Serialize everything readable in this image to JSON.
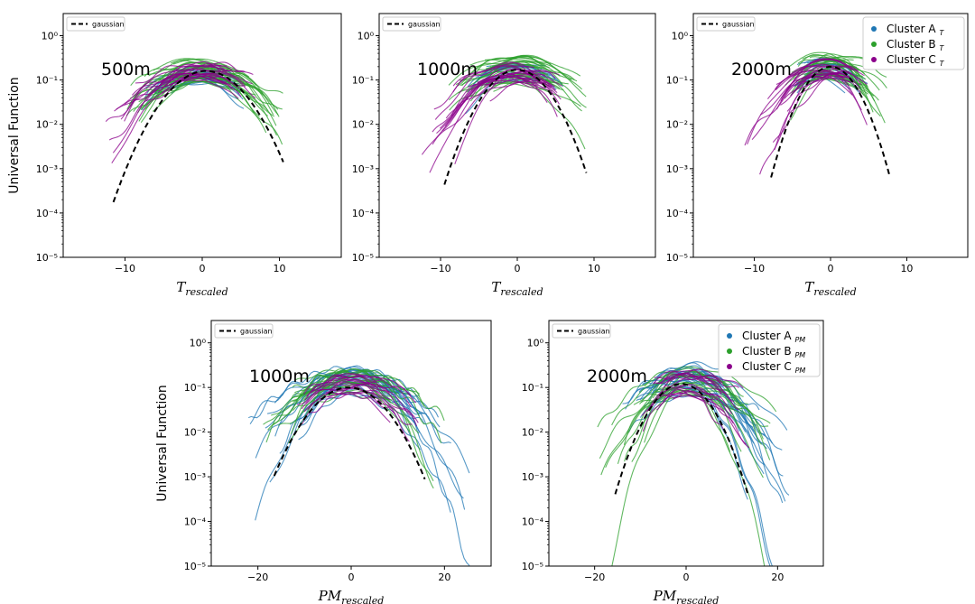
{
  "chart_data": [
    {
      "id": "top-500m",
      "type": "line",
      "annotation": "500m",
      "ylabel": "Universal Function",
      "xlabel": {
        "main": "T",
        "sub": "rescaled"
      },
      "xlim": [
        -18,
        18
      ],
      "ylim_log10": [
        -5,
        0.5
      ],
      "xticks": [
        {
          "v": -10,
          "label": "−10"
        },
        {
          "v": 0,
          "label": "0"
        },
        {
          "v": 10,
          "label": "10"
        }
      ],
      "yticks": [
        {
          "e": 0,
          "label": "10⁰"
        },
        {
          "e": -1,
          "label": "10⁻¹"
        },
        {
          "e": -2,
          "label": "10⁻²"
        },
        {
          "e": -3,
          "label": "10⁻³"
        },
        {
          "e": -4,
          "label": "10⁻⁴"
        },
        {
          "e": -5,
          "label": "10⁻⁵"
        }
      ],
      "gaussian": {
        "name": "gaussian",
        "x_range": [
          -11.5,
          10.5
        ],
        "peak": 0.16,
        "mu": 0.5,
        "sigma": 3.25
      },
      "legend": null,
      "clusters": [
        {
          "name": "Cluster A",
          "color": "#1f77b4",
          "count": 18,
          "seed": 11,
          "x_min": -8,
          "x_max": 6,
          "peak_range": [
            0.08,
            0.25
          ],
          "sigma_range": [
            3.5,
            6
          ]
        },
        {
          "name": "Cluster B",
          "color": "#2ca02c",
          "count": 30,
          "seed": 12,
          "x_min": -10,
          "x_max": 10.5,
          "peak_range": [
            0.08,
            0.3
          ],
          "sigma_range": [
            3.5,
            6.5
          ]
        },
        {
          "name": "Cluster C",
          "color": "#8b008b",
          "count": 22,
          "seed": 13,
          "x_min": -12.5,
          "x_max": 7,
          "peak_range": [
            0.1,
            0.25
          ],
          "sigma_range": [
            3.5,
            5.5
          ]
        }
      ]
    },
    {
      "id": "top-1000m",
      "type": "line",
      "annotation": "1000m",
      "ylabel": null,
      "xlabel": {
        "main": "T",
        "sub": "rescaled"
      },
      "xlim": [
        -18,
        18
      ],
      "ylim_log10": [
        -5,
        0.5
      ],
      "xticks": [
        {
          "v": -10,
          "label": "−10"
        },
        {
          "v": 0,
          "label": "0"
        },
        {
          "v": 10,
          "label": "10"
        }
      ],
      "yticks": [
        {
          "e": 0,
          "label": "10⁰"
        },
        {
          "e": -1,
          "label": "10⁻¹"
        },
        {
          "e": -2,
          "label": "10⁻²"
        },
        {
          "e": -3,
          "label": "10⁻³"
        },
        {
          "e": -4,
          "label": "10⁻⁴"
        },
        {
          "e": -5,
          "label": "10⁻⁵"
        }
      ],
      "gaussian": {
        "name": "gaussian",
        "x_range": [
          -9.5,
          9
        ],
        "peak": 0.17,
        "mu": 0.0,
        "sigma": 2.75
      },
      "legend": null,
      "clusters": [
        {
          "name": "Cluster A",
          "color": "#1f77b4",
          "count": 18,
          "seed": 21,
          "x_min": -7,
          "x_max": 6,
          "peak_range": [
            0.08,
            0.25
          ],
          "sigma_range": [
            3.5,
            5.5
          ]
        },
        {
          "name": "Cluster B",
          "color": "#2ca02c",
          "count": 30,
          "seed": 22,
          "x_min": -9,
          "x_max": 9,
          "peak_range": [
            0.08,
            0.35
          ],
          "sigma_range": [
            3.5,
            6
          ]
        },
        {
          "name": "Cluster C",
          "color": "#8b008b",
          "count": 22,
          "seed": 23,
          "x_min": -12.5,
          "x_max": 6,
          "peak_range": [
            0.08,
            0.25
          ],
          "sigma_range": [
            3,
            5
          ]
        }
      ]
    },
    {
      "id": "top-2000m",
      "type": "line",
      "annotation": "2000m",
      "ylabel": null,
      "xlabel": {
        "main": "T",
        "sub": "rescaled"
      },
      "xlim": [
        -18,
        18
      ],
      "ylim_log10": [
        -5,
        0.5
      ],
      "xticks": [
        {
          "v": -10,
          "label": "−10"
        },
        {
          "v": 0,
          "label": "0"
        },
        {
          "v": 10,
          "label": "10"
        }
      ],
      "yticks": [
        {
          "e": 0,
          "label": "10⁰"
        },
        {
          "e": -1,
          "label": "10⁻¹"
        },
        {
          "e": -2,
          "label": "10⁻²"
        },
        {
          "e": -3,
          "label": "10⁻³"
        },
        {
          "e": -4,
          "label": "10⁻⁴"
        },
        {
          "e": -5,
          "label": "10⁻⁵"
        }
      ],
      "gaussian": {
        "name": "gaussian",
        "x_range": [
          -7.8,
          7.8
        ],
        "peak": 0.2,
        "mu": 0.0,
        "sigma": 2.3
      },
      "legend": {
        "entries": [
          {
            "name": "Cluster A",
            "sub": "T",
            "color": "#1f77b4"
          },
          {
            "name": "Cluster B",
            "sub": "T",
            "color": "#2ca02c"
          },
          {
            "name": "Cluster C",
            "sub": "T",
            "color": "#8b008b"
          }
        ]
      },
      "clusters": [
        {
          "name": "Cluster A",
          "color": "#1f77b4",
          "count": 18,
          "seed": 31,
          "x_min": -5,
          "x_max": 5,
          "peak_range": [
            0.1,
            0.3
          ],
          "sigma_range": [
            2.5,
            4.5
          ]
        },
        {
          "name": "Cluster B",
          "color": "#2ca02c",
          "count": 30,
          "seed": 32,
          "x_min": -6,
          "x_max": 7.5,
          "peak_range": [
            0.1,
            0.4
          ],
          "sigma_range": [
            2.5,
            5
          ]
        },
        {
          "name": "Cluster C",
          "color": "#8b008b",
          "count": 22,
          "seed": 33,
          "x_min": -12,
          "x_max": 5,
          "peak_range": [
            0.1,
            0.3
          ],
          "sigma_range": [
            2.5,
            4.5
          ]
        }
      ]
    },
    {
      "id": "bottom-1000m",
      "type": "line",
      "annotation": "1000m",
      "ylabel": "Universal Function",
      "xlabel": {
        "main": "PM",
        "sub": "rescaled"
      },
      "xlim": [
        -30,
        30
      ],
      "ylim_log10": [
        -5,
        0.5
      ],
      "xticks": [
        {
          "v": -20,
          "label": "−20"
        },
        {
          "v": 0,
          "label": "0"
        },
        {
          "v": 20,
          "label": "20"
        }
      ],
      "yticks": [
        {
          "e": 0,
          "label": "10⁰"
        },
        {
          "e": -1,
          "label": "10⁻¹"
        },
        {
          "e": -2,
          "label": "10⁻²"
        },
        {
          "e": -3,
          "label": "10⁻³"
        },
        {
          "e": -4,
          "label": "10⁻⁴"
        },
        {
          "e": -5,
          "label": "10⁻⁵"
        }
      ],
      "gaussian": {
        "name": "gaussian",
        "x_range": [
          -16.5,
          15.8
        ],
        "peak": 0.1,
        "mu": -0.5,
        "sigma": 5.3
      },
      "legend": null,
      "clusters": [
        {
          "name": "Cluster A",
          "color": "#1f77b4",
          "count": 24,
          "seed": 41,
          "x_min": -23.5,
          "x_max": 26.5,
          "peak_range": [
            0.06,
            0.3
          ],
          "sigma_range": [
            5,
            10
          ]
        },
        {
          "name": "Cluster B",
          "color": "#2ca02c",
          "count": 20,
          "seed": 42,
          "x_min": -19,
          "x_max": 20,
          "peak_range": [
            0.06,
            0.25
          ],
          "sigma_range": [
            5,
            10
          ]
        },
        {
          "name": "Cluster C",
          "color": "#8b008b",
          "count": 18,
          "seed": 43,
          "x_min": -12,
          "x_max": 15,
          "peak_range": [
            0.06,
            0.2
          ],
          "sigma_range": [
            5,
            9
          ]
        }
      ]
    },
    {
      "id": "bottom-2000m",
      "type": "line",
      "annotation": "2000m",
      "ylabel": null,
      "xlabel": {
        "main": "PM",
        "sub": "rescaled"
      },
      "xlim": [
        -30,
        30
      ],
      "ylim_log10": [
        -5,
        0.5
      ],
      "xticks": [
        {
          "v": -20,
          "label": "−20"
        },
        {
          "v": 0,
          "label": "0"
        },
        {
          "v": 20,
          "label": "20"
        }
      ],
      "yticks": [
        {
          "e": 0,
          "label": "10⁰"
        },
        {
          "e": -1,
          "label": "10⁻¹"
        },
        {
          "e": -2,
          "label": "10⁻²"
        },
        {
          "e": -3,
          "label": "10⁻³"
        },
        {
          "e": -4,
          "label": "10⁻⁴"
        },
        {
          "e": -5,
          "label": "10⁻⁵"
        }
      ],
      "gaussian": {
        "name": "gaussian",
        "x_range": [
          -15.5,
          13.5
        ],
        "peak": 0.12,
        "mu": -1.0,
        "sigma": 4.3
      },
      "legend": {
        "entries": [
          {
            "name": "Cluster A",
            "sub": "PM",
            "color": "#1f77b4"
          },
          {
            "name": "Cluster B",
            "sub": "PM",
            "color": "#2ca02c"
          },
          {
            "name": "Cluster C",
            "sub": "PM",
            "color": "#8b008b"
          }
        ]
      },
      "clusters": [
        {
          "name": "Cluster A",
          "color": "#1f77b4",
          "count": 24,
          "seed": 51,
          "x_min": -14,
          "x_max": 22.5,
          "peak_range": [
            0.06,
            0.35
          ],
          "sigma_range": [
            4,
            9
          ]
        },
        {
          "name": "Cluster B",
          "color": "#2ca02c",
          "count": 20,
          "seed": 52,
          "x_min": -20,
          "x_max": 20,
          "peak_range": [
            0.06,
            0.3
          ],
          "sigma_range": [
            4,
            10
          ]
        },
        {
          "name": "Cluster C",
          "color": "#8b008b",
          "count": 18,
          "seed": 53,
          "x_min": -10,
          "x_max": 17,
          "peak_range": [
            0.06,
            0.25
          ],
          "sigma_range": [
            4,
            9
          ]
        }
      ]
    }
  ]
}
